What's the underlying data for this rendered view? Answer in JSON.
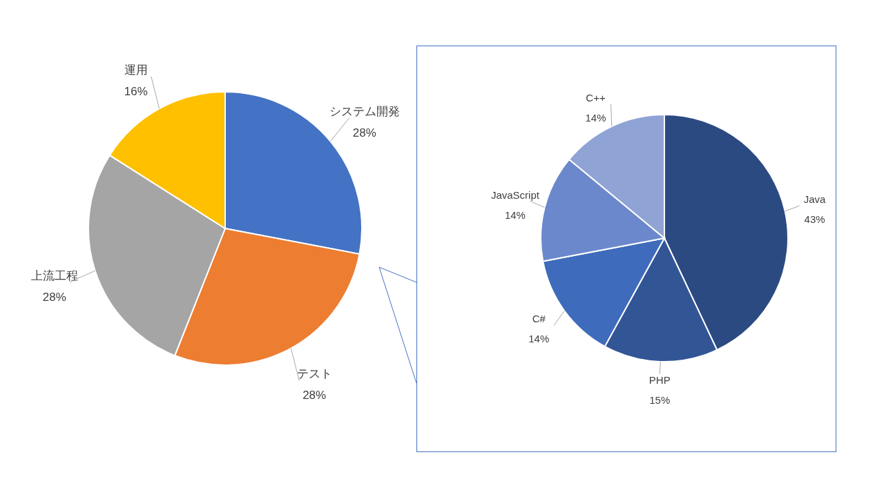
{
  "chart_data": [
    {
      "type": "pie",
      "categories": [
        "システム開発",
        "テスト",
        "上流工程",
        "運用"
      ],
      "values": [
        28,
        28,
        28,
        16
      ],
      "colors": [
        "#4472c4",
        "#ed7d31",
        "#a5a5a5",
        "#ffc000"
      ],
      "value_labels": [
        "28%",
        "28%",
        "28%",
        "16%"
      ]
    },
    {
      "type": "pie",
      "categories": [
        "Java",
        "PHP",
        "C#",
        "JavaScript",
        "C++"
      ],
      "values": [
        43,
        15,
        14,
        14,
        14
      ],
      "colors": [
        "#2c4a82",
        "#325596",
        "#3e6bbb",
        "#6c88cc",
        "#8fa3d5"
      ],
      "value_labels": [
        "43%",
        "15%",
        "14%",
        "14%",
        "14%"
      ]
    }
  ]
}
